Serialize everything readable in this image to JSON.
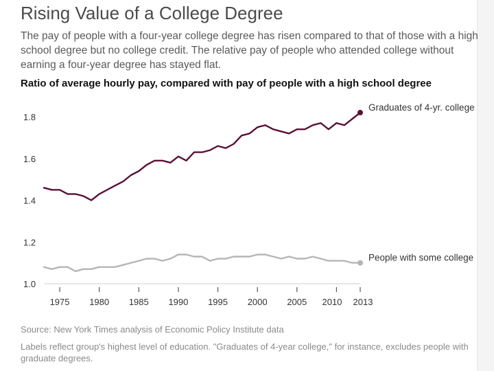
{
  "title": "Rising Value of a College Degree",
  "subtitle": "The pay of people with a four-year college degree has risen compared to that of those with a high school degree but no college credit. The relative pay of people who attended college without earning a four-year degree has stayed flat.",
  "source": "Source: New York Times analysis of Economic Policy Institute data",
  "note": "Labels reflect group's highest level of education. \"Graduates of 4-year college,\" for instance, excludes people with graduate degrees.",
  "colors": {
    "graduates": "#5b0f37",
    "some_college": "#b5b5b5",
    "axis": "#cccccc"
  },
  "chart_data": {
    "type": "line",
    "title": "Ratio of average hourly pay, compared with pay of people with a high school degree",
    "xlabel": "",
    "ylabel": "",
    "xlim": [
      1973,
      2013
    ],
    "ylim": [
      1.0,
      1.8
    ],
    "yticks": [
      1.0,
      1.2,
      1.4,
      1.6,
      1.8
    ],
    "xticks": [
      1975,
      1980,
      1985,
      1990,
      1995,
      2000,
      2005,
      2010,
      2013
    ],
    "xtick_labels": [
      "1975",
      "1980",
      "1985",
      "1990",
      "1995",
      "2000",
      "2005",
      "2010",
      "2013"
    ],
    "grid": false,
    "x": [
      1973,
      1974,
      1975,
      1976,
      1977,
      1978,
      1979,
      1980,
      1981,
      1982,
      1983,
      1984,
      1985,
      1986,
      1987,
      1988,
      1989,
      1990,
      1991,
      1992,
      1993,
      1994,
      1995,
      1996,
      1997,
      1998,
      1999,
      2000,
      2001,
      2002,
      2003,
      2004,
      2005,
      2006,
      2007,
      2008,
      2009,
      2010,
      2011,
      2012,
      2013
    ],
    "series": [
      {
        "name": "Graduates of 4-yr. college",
        "key": "graduates",
        "values": [
          1.46,
          1.45,
          1.45,
          1.43,
          1.43,
          1.42,
          1.4,
          1.43,
          1.45,
          1.47,
          1.49,
          1.52,
          1.54,
          1.57,
          1.59,
          1.59,
          1.58,
          1.61,
          1.59,
          1.63,
          1.63,
          1.64,
          1.66,
          1.65,
          1.67,
          1.71,
          1.72,
          1.75,
          1.76,
          1.74,
          1.73,
          1.72,
          1.74,
          1.74,
          1.76,
          1.77,
          1.74,
          1.77,
          1.76,
          1.79,
          1.82
        ]
      },
      {
        "name": "People with some college",
        "key": "some_college",
        "values": [
          1.08,
          1.07,
          1.08,
          1.08,
          1.06,
          1.07,
          1.07,
          1.08,
          1.08,
          1.08,
          1.09,
          1.1,
          1.11,
          1.12,
          1.12,
          1.11,
          1.12,
          1.14,
          1.14,
          1.13,
          1.13,
          1.11,
          1.12,
          1.12,
          1.13,
          1.13,
          1.13,
          1.14,
          1.14,
          1.13,
          1.12,
          1.13,
          1.12,
          1.12,
          1.13,
          1.12,
          1.11,
          1.11,
          1.11,
          1.1,
          1.1
        ]
      }
    ]
  }
}
